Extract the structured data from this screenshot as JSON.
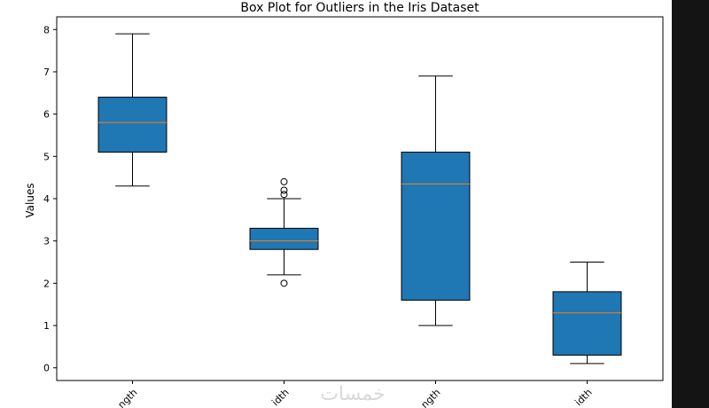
{
  "chart_data": {
    "type": "box",
    "title": "Box Plot for Outliers in the Iris Dataset",
    "xlabel": "",
    "ylabel": "Values",
    "ylim": [
      -0.3,
      8.3
    ],
    "yticks": [
      0,
      1,
      2,
      3,
      4,
      5,
      6,
      7,
      8
    ],
    "xtick_labels_visible": [
      "ngth",
      "idth",
      "ngth",
      "idth"
    ],
    "boxes": [
      {
        "q1": 5.1,
        "median": 5.8,
        "q3": 6.4,
        "whisker_low": 4.3,
        "whisker_high": 7.9,
        "outliers": []
      },
      {
        "q1": 2.8,
        "median": 3.0,
        "q3": 3.3,
        "whisker_low": 2.2,
        "whisker_high": 4.0,
        "outliers": [
          2.0,
          4.1,
          4.2,
          4.4
        ]
      },
      {
        "q1": 1.6,
        "median": 4.35,
        "q3": 5.1,
        "whisker_low": 1.0,
        "whisker_high": 6.9,
        "outliers": []
      },
      {
        "q1": 0.3,
        "median": 1.3,
        "q3": 1.8,
        "whisker_low": 0.1,
        "whisker_high": 2.5,
        "outliers": []
      }
    ],
    "colors": {
      "box_fill": "#1f77b4",
      "median": "#ff7f0e",
      "line": "#000000"
    },
    "grid": false,
    "legend": "none"
  },
  "watermark": "خمسات"
}
